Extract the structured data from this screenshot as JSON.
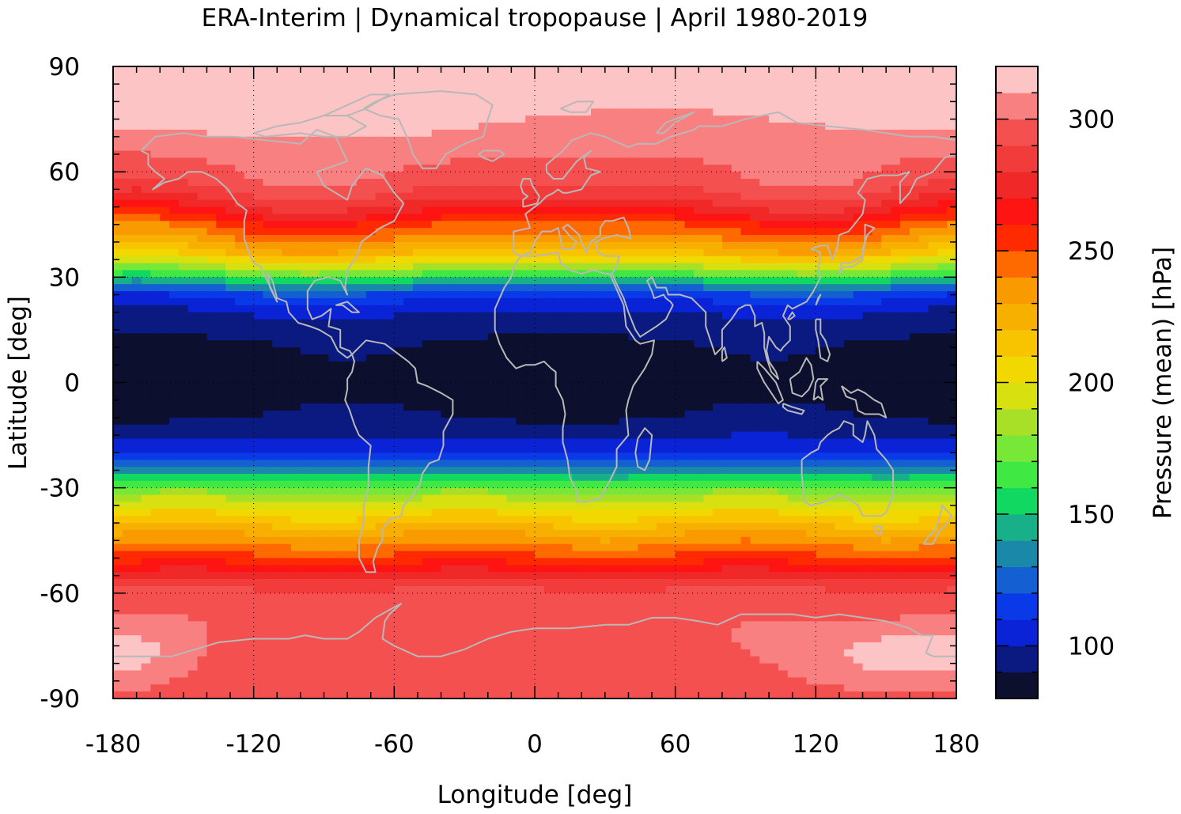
{
  "chart_data": {
    "type": "heatmap",
    "title": "ERA-Interim | Dynamical tropopause | April 1980-2019",
    "xlabel": "Longitude [deg]",
    "ylabel": "Latitude [deg]",
    "colorbar_label": "Pressure (mean) [hPa]",
    "xlim": [
      -180,
      180
    ],
    "ylim": [
      -90,
      90
    ],
    "xticks": [
      -180,
      -120,
      -60,
      0,
      60,
      120,
      180
    ],
    "yticks": [
      90,
      60,
      30,
      0,
      -30,
      -60,
      -90
    ],
    "xtick_labels": [
      "-180",
      "-120",
      "-60",
      "0",
      "60",
      "120",
      "180"
    ],
    "ytick_labels": [
      "90",
      "60",
      "30",
      "0",
      "-30",
      "-60",
      "-90"
    ],
    "grid": true,
    "colorbar_range": [
      80,
      320
    ],
    "colorbar_ticks": [
      100,
      150,
      200,
      250,
      300
    ],
    "colorbar_tick_labels": [
      "100",
      "150",
      "200",
      "250",
      "300"
    ],
    "colorbar_levels": [
      80,
      90,
      100,
      110,
      120,
      130,
      140,
      150,
      160,
      170,
      180,
      190,
      200,
      210,
      220,
      230,
      240,
      250,
      260,
      270,
      280,
      290,
      300,
      310,
      320
    ],
    "colorbar_colors": [
      "#0c0f2e",
      "#0a1a80",
      "#0a23d6",
      "#0a3ae8",
      "#1460d2",
      "#1a88a8",
      "#18b088",
      "#10d860",
      "#40e844",
      "#78e838",
      "#a8e028",
      "#d8e010",
      "#f0d800",
      "#f8c400",
      "#f8b000",
      "#f89a00",
      "#ff6a00",
      "#ff2a00",
      "#ff1414",
      "#f02828",
      "#f23c3c",
      "#f45050",
      "#f88080",
      "#fcc4c4"
    ],
    "zonal_mean_profile": {
      "lat": [
        -90,
        -85,
        -80,
        -75,
        -70,
        -65,
        -60,
        -57,
        -55,
        -52,
        -50,
        -47,
        -45,
        -42,
        -40,
        -37,
        -35,
        -32,
        -30,
        -27,
        -25,
        -22,
        -20,
        -17,
        -15,
        -12,
        -10,
        -5,
        0,
        5,
        10,
        15,
        20,
        22,
        25,
        27,
        30,
        32,
        35,
        37,
        40,
        42,
        45,
        47,
        50,
        52,
        55,
        57,
        60,
        65,
        70,
        75,
        80,
        85,
        90
      ],
      "pressure": [
        296,
        297,
        298,
        299,
        299,
        297,
        293,
        285,
        275,
        262,
        253,
        244,
        235,
        226,
        217,
        207,
        196,
        184,
        171,
        152,
        133,
        120,
        110,
        102,
        98,
        94,
        90,
        86,
        85,
        86,
        88,
        93,
        100,
        106,
        116,
        130,
        160,
        182,
        205,
        220,
        232,
        242,
        252,
        263,
        275,
        283,
        290,
        295,
        298,
        301,
        305,
        308,
        311,
        313,
        314
      ]
    }
  }
}
